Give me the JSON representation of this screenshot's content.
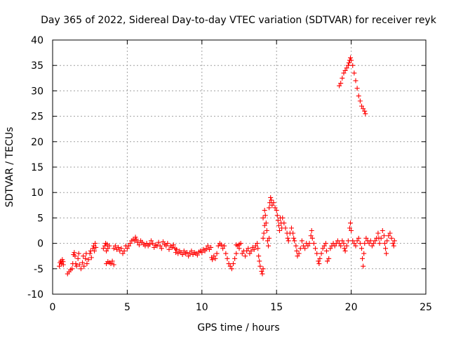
{
  "chart_data": {
    "type": "scatter",
    "title": "Day 365 of 2022, Sidereal Day-to-day VTEC variation (SDTVAR) for receiver reyk",
    "xlabel": "GPS time / hours",
    "ylabel": "SDTVAR / TECUs",
    "xlim": [
      0,
      25
    ],
    "ylim": [
      -10,
      40
    ],
    "xticks": [
      0,
      5,
      10,
      15,
      20,
      25
    ],
    "yticks": [
      -10,
      -5,
      0,
      5,
      10,
      15,
      20,
      25,
      30,
      35,
      40
    ],
    "xtick_labels": [
      "0",
      "5",
      "10",
      "15",
      "20",
      "25"
    ],
    "ytick_labels": [
      "-10",
      "-5",
      "0",
      "5",
      "10",
      "15",
      "20",
      "25",
      "30",
      "35",
      "40"
    ],
    "grid": true,
    "marker": "+",
    "series_color": "#ff0000",
    "series": [
      {
        "name": "SDTVAR",
        "points": [
          [
            0.45,
            -4.5
          ],
          [
            0.5,
            -3.8
          ],
          [
            0.55,
            -3.5
          ],
          [
            0.6,
            -4.0
          ],
          [
            0.65,
            -3.2
          ],
          [
            0.7,
            -3.6
          ],
          [
            0.72,
            -4.2
          ],
          [
            1.0,
            -6.0
          ],
          [
            1.1,
            -5.6
          ],
          [
            1.2,
            -5.2
          ],
          [
            1.3,
            -5.0
          ],
          [
            1.35,
            -4.0
          ],
          [
            1.4,
            -2.2
          ],
          [
            1.45,
            -1.8
          ],
          [
            1.5,
            -2.5
          ],
          [
            1.55,
            -4.0
          ],
          [
            1.6,
            -4.5
          ],
          [
            1.7,
            -3.0
          ],
          [
            1.75,
            -2.0
          ],
          [
            1.8,
            -4.2
          ],
          [
            1.9,
            -5.0
          ],
          [
            2.0,
            -3.8
          ],
          [
            2.05,
            -2.5
          ],
          [
            2.1,
            -4.5
          ],
          [
            2.2,
            -3.0
          ],
          [
            2.25,
            -2.0
          ],
          [
            2.3,
            -4.0
          ],
          [
            2.4,
            -3.2
          ],
          [
            2.5,
            -2.0
          ],
          [
            2.55,
            -1.5
          ],
          [
            2.6,
            -2.8
          ],
          [
            2.7,
            -1.0
          ],
          [
            2.75,
            -0.5
          ],
          [
            2.8,
            -1.5
          ],
          [
            2.85,
            0.0
          ],
          [
            2.9,
            -0.8
          ],
          [
            3.4,
            -1.0
          ],
          [
            3.5,
            -0.5
          ],
          [
            3.55,
            0.0
          ],
          [
            3.6,
            -1.5
          ],
          [
            3.65,
            -0.2
          ],
          [
            3.7,
            -1.0
          ],
          [
            3.8,
            -0.5
          ],
          [
            3.6,
            -4.0
          ],
          [
            3.7,
            -3.6
          ],
          [
            3.8,
            -3.8
          ],
          [
            3.9,
            -4.0
          ],
          [
            4.0,
            -3.5
          ],
          [
            4.1,
            -4.2
          ],
          [
            4.1,
            -1.0
          ],
          [
            4.2,
            -0.5
          ],
          [
            4.3,
            -1.2
          ],
          [
            4.4,
            -0.8
          ],
          [
            4.5,
            -1.5
          ],
          [
            4.6,
            -1.0
          ],
          [
            4.7,
            -2.0
          ],
          [
            4.8,
            -1.5
          ],
          [
            4.9,
            -0.5
          ],
          [
            5.0,
            -1.0
          ],
          [
            5.1,
            -0.5
          ],
          [
            5.2,
            0.0
          ],
          [
            5.3,
            0.5
          ],
          [
            5.4,
            0.8
          ],
          [
            5.5,
            0.5
          ],
          [
            5.55,
            1.2
          ],
          [
            5.6,
            0.8
          ],
          [
            5.7,
            0.2
          ],
          [
            5.8,
            -0.3
          ],
          [
            5.9,
            0.5
          ],
          [
            6.0,
            0.2
          ],
          [
            6.1,
            -0.2
          ],
          [
            6.2,
            -0.5
          ],
          [
            6.3,
            0.0
          ],
          [
            6.4,
            -0.5
          ],
          [
            6.5,
            -0.2
          ],
          [
            6.6,
            0.5
          ],
          [
            6.7,
            0.0
          ],
          [
            6.8,
            -0.8
          ],
          [
            6.9,
            -0.3
          ],
          [
            7.0,
            -0.5
          ],
          [
            7.1,
            0.2
          ],
          [
            7.2,
            -0.5
          ],
          [
            7.3,
            -1.0
          ],
          [
            7.4,
            0.3
          ],
          [
            7.5,
            -0.2
          ],
          [
            7.6,
            -0.5
          ],
          [
            7.7,
            0.0
          ],
          [
            7.8,
            -1.2
          ],
          [
            7.9,
            -0.5
          ],
          [
            8.0,
            -0.8
          ],
          [
            8.1,
            -0.3
          ],
          [
            8.2,
            -1.0
          ],
          [
            8.25,
            -1.8
          ],
          [
            8.3,
            -1.2
          ],
          [
            8.4,
            -2.0
          ],
          [
            8.5,
            -1.5
          ],
          [
            8.6,
            -1.8
          ],
          [
            8.7,
            -2.2
          ],
          [
            8.8,
            -1.5
          ],
          [
            8.9,
            -2.0
          ],
          [
            9.0,
            -1.8
          ],
          [
            9.1,
            -2.5
          ],
          [
            9.2,
            -2.0
          ],
          [
            9.3,
            -1.5
          ],
          [
            9.4,
            -2.2
          ],
          [
            9.5,
            -1.8
          ],
          [
            9.6,
            -2.0
          ],
          [
            9.7,
            -2.3
          ],
          [
            9.8,
            -1.7
          ],
          [
            9.9,
            -1.5
          ],
          [
            10.0,
            -1.8
          ],
          [
            10.1,
            -1.2
          ],
          [
            10.2,
            -1.5
          ],
          [
            10.3,
            -1.0
          ],
          [
            10.4,
            -0.5
          ],
          [
            10.5,
            -1.2
          ],
          [
            10.6,
            -0.8
          ],
          [
            10.65,
            -2.8
          ],
          [
            10.7,
            -3.2
          ],
          [
            10.8,
            -2.5
          ],
          [
            10.9,
            -3.0
          ],
          [
            11.0,
            -2.0
          ],
          [
            11.1,
            -0.5
          ],
          [
            11.2,
            0.0
          ],
          [
            11.3,
            -0.3
          ],
          [
            11.4,
            -1.0
          ],
          [
            11.5,
            -0.5
          ],
          [
            11.6,
            -2.0
          ],
          [
            11.7,
            -3.0
          ],
          [
            11.8,
            -4.0
          ],
          [
            11.9,
            -4.5
          ],
          [
            12.0,
            -5.0
          ],
          [
            12.1,
            -4.0
          ],
          [
            12.2,
            -3.0
          ],
          [
            12.3,
            -2.0
          ],
          [
            12.4,
            -0.5
          ],
          [
            12.5,
            -0.2
          ],
          [
            12.6,
            0.0
          ],
          [
            12.3,
            -0.3
          ],
          [
            12.5,
            -1.0
          ],
          [
            12.7,
            -2.0
          ],
          [
            12.8,
            -1.5
          ],
          [
            12.9,
            -2.5
          ],
          [
            13.0,
            -1.5
          ],
          [
            13.1,
            -1.0
          ],
          [
            13.2,
            -2.0
          ],
          [
            13.3,
            -1.5
          ],
          [
            13.4,
            -0.8
          ],
          [
            13.5,
            -1.2
          ],
          [
            13.6,
            -0.5
          ],
          [
            13.7,
            0.0
          ],
          [
            13.75,
            -1.0
          ],
          [
            13.8,
            -2.5
          ],
          [
            13.85,
            -3.5
          ],
          [
            13.9,
            -4.5
          ],
          [
            14.0,
            -5.5
          ],
          [
            14.05,
            -6.0
          ],
          [
            14.1,
            -5.0
          ],
          [
            14.1,
            1.0
          ],
          [
            14.15,
            2.0
          ],
          [
            14.2,
            3.5
          ],
          [
            14.1,
            5.0
          ],
          [
            14.2,
            6.5
          ],
          [
            14.25,
            5.5
          ],
          [
            14.3,
            4.0
          ],
          [
            14.35,
            2.5
          ],
          [
            14.4,
            0.5
          ],
          [
            14.45,
            -0.5
          ],
          [
            14.5,
            1.0
          ],
          [
            14.5,
            7.0
          ],
          [
            14.55,
            8.0
          ],
          [
            14.6,
            9.0
          ],
          [
            14.65,
            8.5
          ],
          [
            14.7,
            7.5
          ],
          [
            14.8,
            8.0
          ],
          [
            14.9,
            7.0
          ],
          [
            15.0,
            6.5
          ],
          [
            15.05,
            5.5
          ],
          [
            15.1,
            4.5
          ],
          [
            15.15,
            3.5
          ],
          [
            15.2,
            2.5
          ],
          [
            15.25,
            5.0
          ],
          [
            15.3,
            4.0
          ],
          [
            15.35,
            3.0
          ],
          [
            15.4,
            5.0
          ],
          [
            15.5,
            4.0
          ],
          [
            15.6,
            3.0
          ],
          [
            15.7,
            2.0
          ],
          [
            15.75,
            1.0
          ],
          [
            15.8,
            0.5
          ],
          [
            15.9,
            2.0
          ],
          [
            16.0,
            3.0
          ],
          [
            16.1,
            2.0
          ],
          [
            16.15,
            1.0
          ],
          [
            16.2,
            0.5
          ],
          [
            16.3,
            -0.5
          ],
          [
            16.35,
            -1.5
          ],
          [
            16.4,
            -2.5
          ],
          [
            16.5,
            -2.0
          ],
          [
            16.6,
            -1.0
          ],
          [
            16.7,
            0.5
          ],
          [
            16.8,
            -0.5
          ],
          [
            16.9,
            -1.0
          ],
          [
            17.0,
            0.0
          ],
          [
            17.1,
            -0.5
          ],
          [
            17.2,
            0.0
          ],
          [
            17.3,
            1.5
          ],
          [
            17.35,
            2.5
          ],
          [
            17.4,
            1.0
          ],
          [
            17.5,
            0.0
          ],
          [
            17.6,
            -1.0
          ],
          [
            17.7,
            -2.0
          ],
          [
            17.8,
            -3.5
          ],
          [
            17.85,
            -4.0
          ],
          [
            17.9,
            -3.0
          ],
          [
            18.0,
            -2.0
          ],
          [
            18.1,
            -1.0
          ],
          [
            18.2,
            -0.5
          ],
          [
            18.3,
            0.0
          ],
          [
            18.35,
            -1.5
          ],
          [
            18.4,
            -3.5
          ],
          [
            18.5,
            -3.0
          ],
          [
            18.6,
            -1.0
          ],
          [
            18.7,
            -0.5
          ],
          [
            18.8,
            0.0
          ],
          [
            18.9,
            -0.5
          ],
          [
            19.0,
            0.0
          ],
          [
            19.1,
            0.5
          ],
          [
            19.2,
            0.0
          ],
          [
            19.3,
            -0.5
          ],
          [
            19.4,
            0.5
          ],
          [
            19.5,
            0.0
          ],
          [
            19.55,
            -1.0
          ],
          [
            19.6,
            -1.5
          ],
          [
            19.7,
            -0.5
          ],
          [
            19.8,
            0.5
          ],
          [
            19.9,
            3.0
          ],
          [
            19.95,
            4.0
          ],
          [
            20.0,
            2.5
          ],
          [
            20.1,
            0.5
          ],
          [
            20.2,
            0.0
          ],
          [
            20.3,
            -0.5
          ],
          [
            20.4,
            0.5
          ],
          [
            20.5,
            1.0
          ],
          [
            20.6,
            0.0
          ],
          [
            20.7,
            -1.0
          ],
          [
            20.75,
            -3.0
          ],
          [
            20.8,
            -4.5
          ],
          [
            20.85,
            -2.0
          ],
          [
            20.9,
            0.0
          ],
          [
            21.0,
            1.0
          ],
          [
            21.1,
            0.5
          ],
          [
            21.2,
            0.0
          ],
          [
            21.3,
            0.5
          ],
          [
            21.4,
            -0.5
          ],
          [
            21.5,
            0.0
          ],
          [
            21.6,
            0.5
          ],
          [
            21.7,
            1.0
          ],
          [
            21.8,
            2.0
          ],
          [
            21.85,
            1.0
          ],
          [
            21.9,
            0.0
          ],
          [
            22.0,
            1.0
          ],
          [
            22.1,
            2.5
          ],
          [
            22.2,
            1.5
          ],
          [
            22.25,
            0.0
          ],
          [
            22.3,
            -1.0
          ],
          [
            22.35,
            -2.0
          ],
          [
            22.4,
            0.5
          ],
          [
            22.5,
            1.5
          ],
          [
            22.6,
            2.0
          ],
          [
            22.7,
            1.0
          ],
          [
            22.8,
            0.0
          ],
          [
            22.85,
            -0.5
          ],
          [
            22.9,
            0.5
          ],
          [
            19.2,
            31.0
          ],
          [
            19.3,
            31.5
          ],
          [
            19.4,
            32.5
          ],
          [
            19.5,
            33.5
          ],
          [
            19.6,
            34.0
          ],
          [
            19.7,
            34.5
          ],
          [
            19.8,
            35.0
          ],
          [
            19.85,
            35.5
          ],
          [
            19.9,
            36.0
          ],
          [
            19.95,
            36.5
          ],
          [
            20.0,
            36.0
          ],
          [
            20.1,
            35.0
          ],
          [
            20.2,
            33.5
          ],
          [
            20.3,
            32.0
          ],
          [
            20.4,
            30.5
          ],
          [
            20.5,
            29.0
          ],
          [
            20.6,
            28.0
          ],
          [
            20.7,
            27.0
          ],
          [
            20.8,
            26.5
          ],
          [
            20.9,
            26.0
          ],
          [
            20.95,
            25.5
          ]
        ]
      }
    ]
  }
}
